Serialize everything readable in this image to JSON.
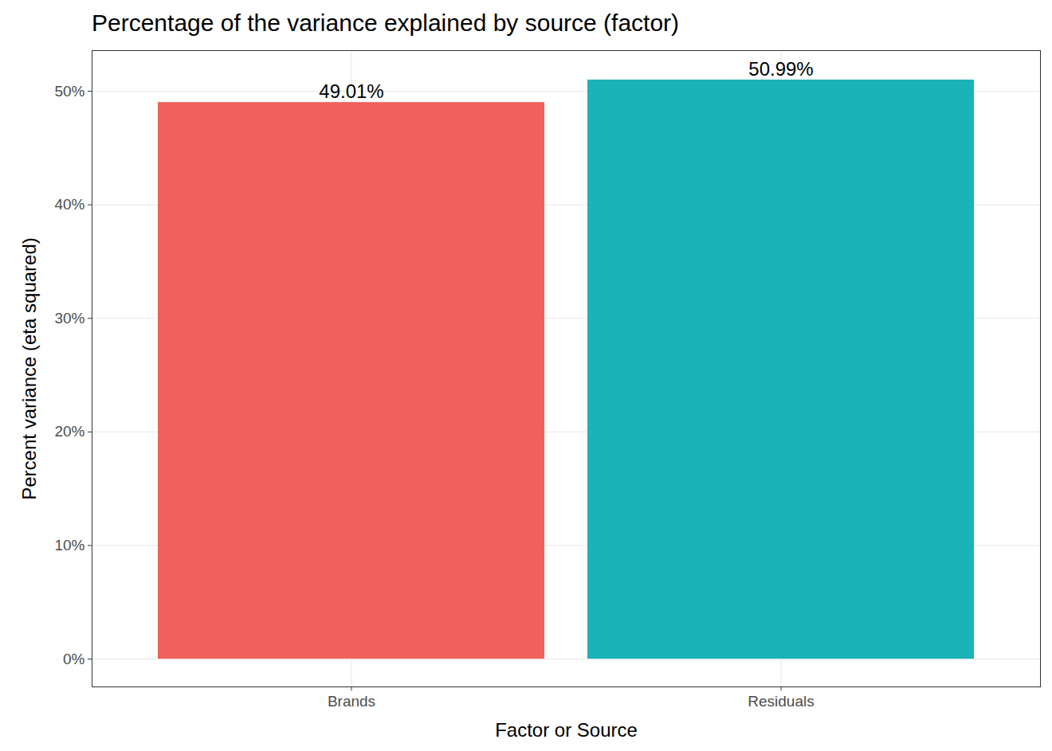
{
  "chart_data": {
    "type": "bar",
    "title": "Percentage of the variance explained by source (factor)",
    "x_label": "Factor or Source",
    "y_label": "Percent variance (eta squared)",
    "categories": [
      "Brands",
      "Residuals"
    ],
    "values": [
      49.01,
      50.99
    ],
    "value_labels": [
      "49.01%",
      "50.99%"
    ],
    "colors": [
      "#F2605C",
      "#1BB3B8"
    ],
    "ylim": [
      -2.45,
      53.58
    ],
    "yticks": [
      {
        "value": 0,
        "label": "0%"
      },
      {
        "value": 10,
        "label": "10%"
      },
      {
        "value": 20,
        "label": "20%"
      },
      {
        "value": 30,
        "label": "30%"
      },
      {
        "value": 40,
        "label": "40%"
      },
      {
        "value": 50,
        "label": "50%"
      }
    ],
    "grid": true,
    "data_labels": true
  }
}
